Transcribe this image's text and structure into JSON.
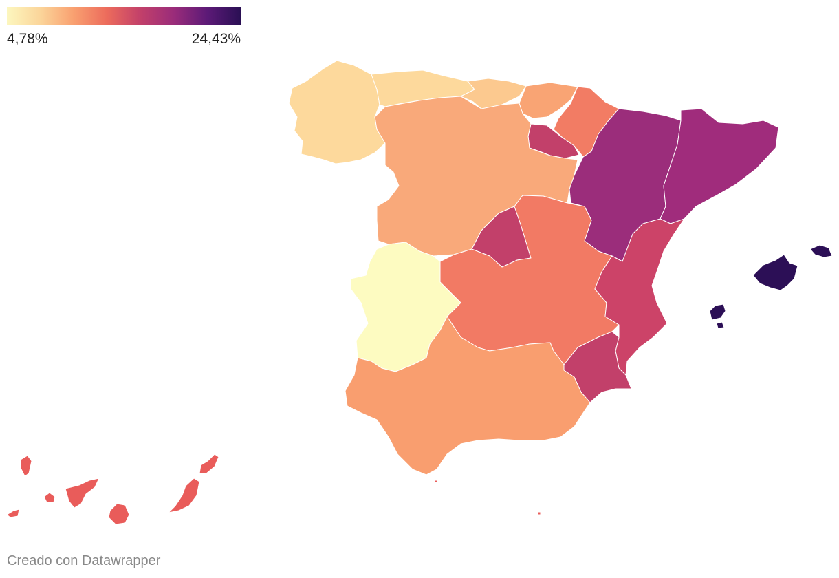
{
  "legend": {
    "min_label": "4,78%",
    "max_label": "24,43%",
    "gradient": [
      "#fcf7bf",
      "#fbd59a",
      "#f9a070",
      "#ec6b5c",
      "#c2406a",
      "#9a2c7a",
      "#5c1a77",
      "#2a0f54"
    ]
  },
  "credit": "Creado con Datawrapper",
  "regions": [
    {
      "id": "galicia",
      "color": "#fdd99c"
    },
    {
      "id": "asturias",
      "color": "#fdd99c"
    },
    {
      "id": "cantabria",
      "color": "#fcc98f"
    },
    {
      "id": "pais-vasco",
      "color": "#f9a474"
    },
    {
      "id": "navarra",
      "color": "#f27c64"
    },
    {
      "id": "la-rioja",
      "color": "#c2406a"
    },
    {
      "id": "castilla-y-leon",
      "color": "#f9a97a"
    },
    {
      "id": "aragon",
      "color": "#9b2d7b"
    },
    {
      "id": "cataluna",
      "color": "#a02c7c"
    },
    {
      "id": "madrid",
      "color": "#c2406a"
    },
    {
      "id": "castilla-la-mancha",
      "color": "#f27a64"
    },
    {
      "id": "extremadura",
      "color": "#fdfbc1"
    },
    {
      "id": "comunidad-valenciana",
      "color": "#cc4368"
    },
    {
      "id": "murcia",
      "color": "#c2406a"
    },
    {
      "id": "andalucia",
      "color": "#f99e6f"
    },
    {
      "id": "baleares",
      "color": "#2c0f56"
    },
    {
      "id": "canarias",
      "color": "#e95c5a"
    },
    {
      "id": "ceuta-melilla",
      "color": "#e95c5a"
    }
  ]
}
